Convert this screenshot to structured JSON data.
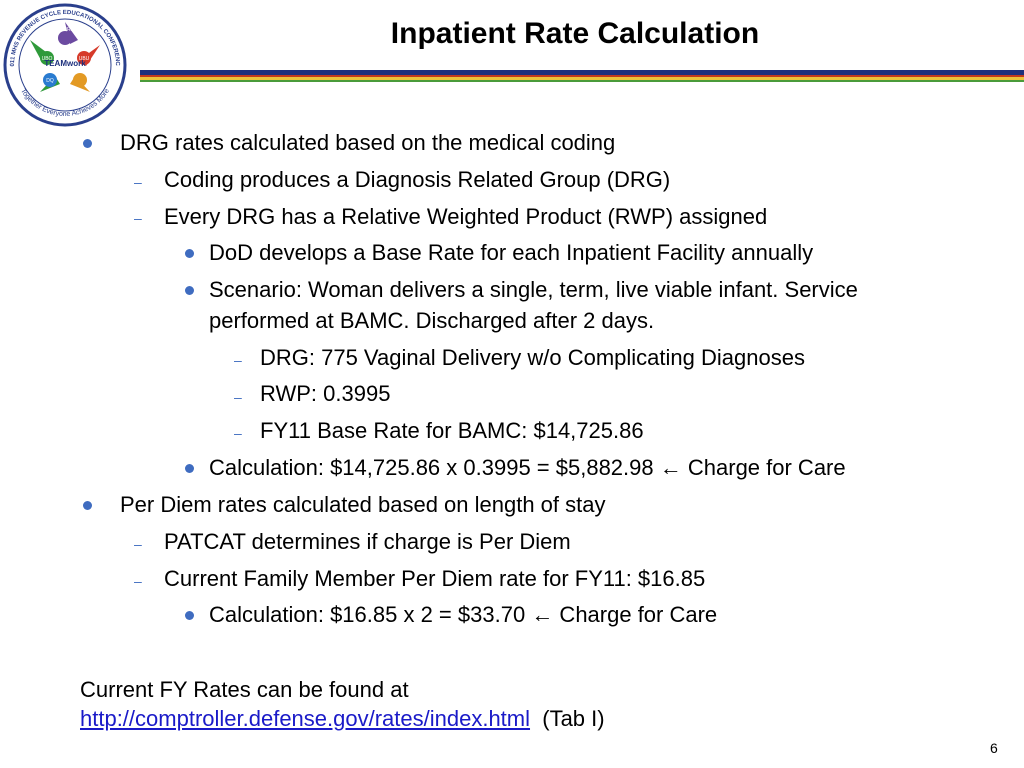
{
  "slide": {
    "title": "Inpatient Rate Calculation",
    "page_number": "6"
  },
  "logo": {
    "ring_text_top": "2011 MHS REVENUE CYCLE EDUCATIONAL CONFERENCE",
    "ring_text_bottom": "Together Everyone Achieves More",
    "center_text": "TEAMwork",
    "hand_labels": [
      "MEPRS",
      "UBO",
      "UBU",
      "DQ"
    ]
  },
  "bullets": [
    {
      "text": "DRG rates calculated based on the medical coding"
    },
    {
      "text": "Coding produces a Diagnosis Related Group (DRG)"
    },
    {
      "text": "Every DRG has a Relative Weighted Product (RWP) assigned"
    },
    {
      "text": "DoD develops a Base Rate for each Inpatient Facility annually"
    },
    {
      "text": "Scenario: Woman delivers a single, term, live viable infant.   Service",
      "text2": "performed at BAMC.  Discharged after 2 days."
    },
    {
      "text": "DRG:  775 Vaginal Delivery w/o Complicating Diagnoses"
    },
    {
      "text": "RWP:  0.3995"
    },
    {
      "text": "FY11 Base Rate for BAMC:  $14,725.86"
    },
    {
      "text": "Calculation:  $14,725.86 x 0.3995 = $5,882.98",
      "arrow": "←",
      "suffix": " Charge for Care"
    },
    {
      "text": "Per Diem rates calculated based on length of stay"
    },
    {
      "text": "PATCAT determines if charge is Per Diem"
    },
    {
      "text": "Current Family Member Per Diem rate for FY11: $16.85"
    },
    {
      "text": "Calculation:  $16.85 x 2 = $33.70",
      "arrow": "←",
      "suffix": " Charge for Care"
    }
  ],
  "footer_note": {
    "line1": "Current FY Rates can be found at",
    "link": "http://comptroller.defense.gov/rates/index.html",
    "after_link": "  (Tab I)"
  },
  "colors": {
    "bullet": "#3f6cc0",
    "link": "#1a1ac8",
    "rule_blue": "#1c2f7c"
  },
  "icons": {
    "arrow": "left-arrow-icon"
  }
}
